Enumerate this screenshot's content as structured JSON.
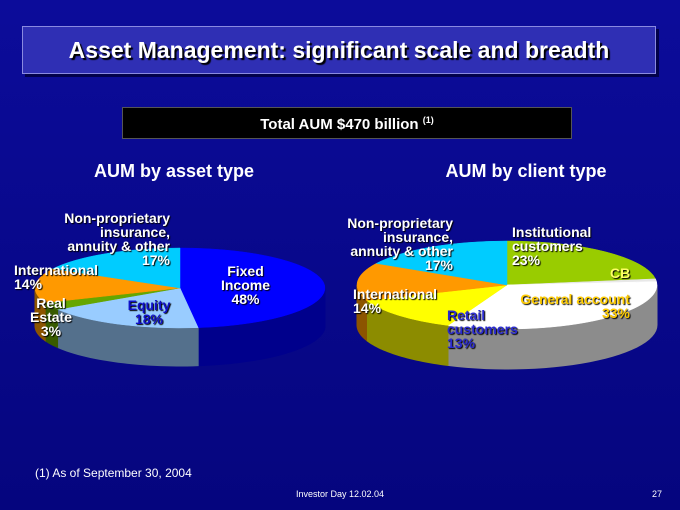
{
  "title": "Asset Management: significant scale and breadth",
  "subtitle": "Total AUM $470 billion",
  "subtitle_note": "(1)",
  "footnote": "(1) As of September 30, 2004",
  "footer": "Investor Day 12.02.04",
  "page": "27",
  "chart_data": [
    {
      "type": "pie",
      "title": "AUM by asset type",
      "categories": [
        "Fixed Income",
        "Equity",
        "Real Estate",
        "International",
        "Non-proprietary insurance, annuity & other"
      ],
      "values": [
        48,
        18,
        3,
        14,
        17
      ],
      "value_labels": [
        "48%",
        "18%",
        "3%",
        "14%",
        "17%"
      ],
      "colors": [
        "#0000ff",
        "#99ccff",
        "#66a600",
        "#ff9900",
        "#00ccff"
      ]
    },
    {
      "type": "pie",
      "title": "AUM by client type",
      "categories": [
        "Institutional customers",
        "CB",
        "General account",
        "Retail customers",
        "International",
        "Non-proprietary insurance, annuity & other"
      ],
      "values": [
        23,
        1,
        33,
        13,
        14,
        17
      ],
      "value_labels": [
        "23%",
        null,
        "33%",
        "13%",
        "14%",
        "17%"
      ],
      "colors": [
        "#99cc00",
        "#e8e8e8",
        "#ffffff",
        "#ffff00",
        "#ff9900",
        "#00ccff"
      ]
    }
  ]
}
